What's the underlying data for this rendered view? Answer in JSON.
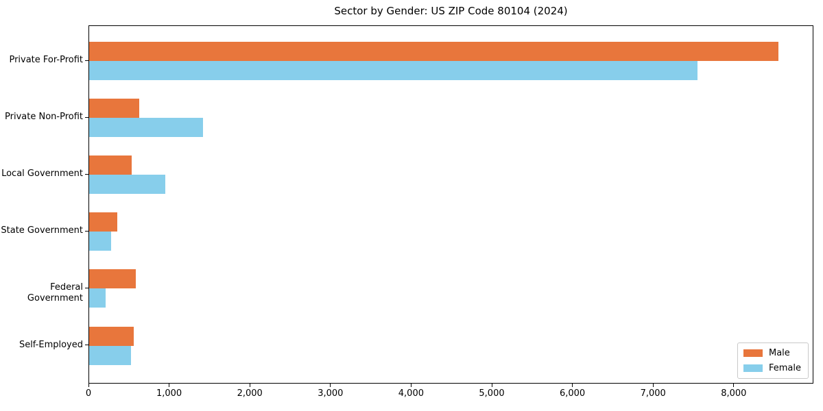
{
  "chart_data": {
    "type": "bar",
    "orientation": "horizontal",
    "title": "Sector by Gender: US ZIP Code 80104 (2024)",
    "categories": [
      "Private For-Profit",
      "Private Non-Profit",
      "Local Government",
      "State Government",
      "Federal Government",
      "Self-Employed"
    ],
    "series": [
      {
        "name": "Male",
        "color": "#e8763c",
        "values": [
          8550,
          620,
          530,
          345,
          575,
          550
        ]
      },
      {
        "name": "Female",
        "color": "#87ceeb",
        "values": [
          7540,
          1410,
          940,
          270,
          200,
          520
        ]
      }
    ],
    "xlabel": "",
    "ylabel": "",
    "xlim": [
      0,
      8988
    ],
    "x_ticks": [
      0,
      1000,
      2000,
      3000,
      4000,
      5000,
      6000,
      7000,
      8000
    ],
    "x_tick_labels": [
      "0",
      "1,000",
      "2,000",
      "3,000",
      "4,000",
      "5,000",
      "6,000",
      "7,000",
      "8,000"
    ],
    "grid": false,
    "background_color": "#ffffff",
    "spine_color": "#000000",
    "legend": {
      "position": "lower right",
      "border_color": "#c8c8c8",
      "entries": [
        "Male",
        "Female"
      ]
    }
  }
}
